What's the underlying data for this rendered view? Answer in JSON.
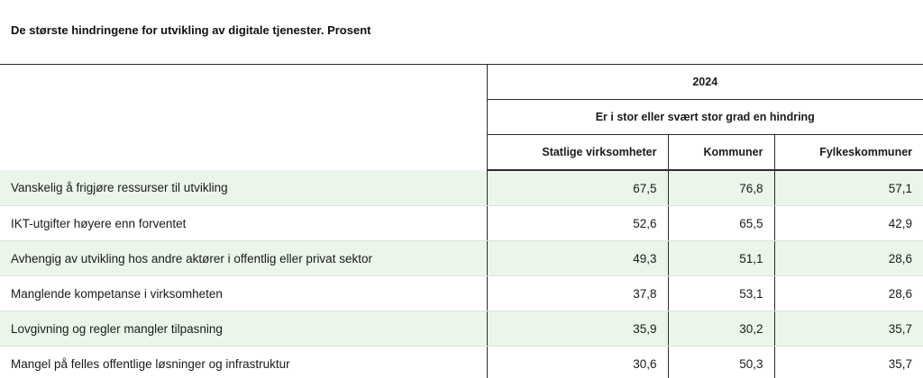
{
  "title": "De største hindringene for utvikling av digitale tjenester. Prosent",
  "header": {
    "year": "2024",
    "measure": "Er i stor eller svært stor grad en hindring",
    "columns": [
      "Statlige virksomheter",
      "Kommuner",
      "Fylkeskommuner"
    ]
  },
  "rows": [
    {
      "label": "Vanskelig å frigjøre ressurser til utvikling",
      "values": [
        "67,5",
        "76,8",
        "57,1"
      ]
    },
    {
      "label": "IKT-utgifter høyere enn forventet",
      "values": [
        "52,6",
        "65,5",
        "42,9"
      ]
    },
    {
      "label": "Avhengig av utvikling hos andre aktører i offentlig eller privat sektor",
      "values": [
        "49,3",
        "51,1",
        "28,6"
      ]
    },
    {
      "label": "Manglende kompetanse i virksomheten",
      "values": [
        "37,8",
        "53,1",
        "28,6"
      ]
    },
    {
      "label": "Lovgivning og regler mangler tilpasning",
      "values": [
        "35,9",
        "30,2",
        "35,7"
      ]
    },
    {
      "label": "Mangel på felles offentlige løsninger og infrastruktur",
      "values": [
        "30,6",
        "50,3",
        "35,7"
      ]
    }
  ],
  "colors": {
    "row_shade": "#ebf6ea",
    "rule": "#2b2b2b",
    "row_divider": "#d9e3d9"
  }
}
